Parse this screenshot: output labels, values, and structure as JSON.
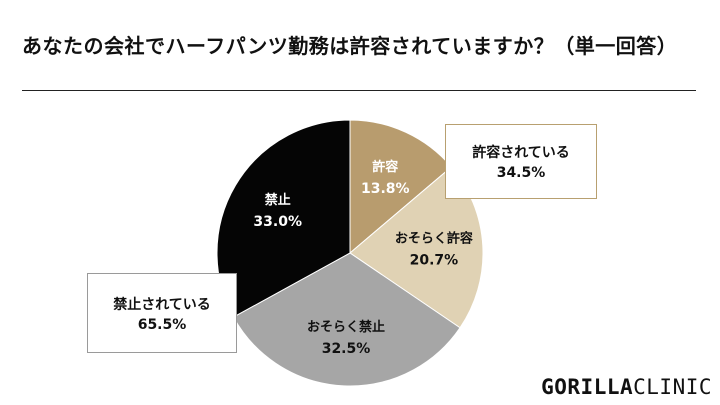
{
  "title": "あなたの会社でハーフパンツ勤務は許容されていますか？（単一回答）",
  "chart_data": {
    "type": "pie",
    "start_angle_deg": 0,
    "direction": "clockwise",
    "slices": [
      {
        "label": "許容",
        "value": 13.8,
        "value_text": "13.8%",
        "color": "#b89c6e",
        "text_color": "#ffffff"
      },
      {
        "label": "おそらく許容",
        "value": 20.7,
        "value_text": "20.7%",
        "color": "#e0d2b4",
        "text_color": "#111111"
      },
      {
        "label": "おそらく禁止",
        "value": 32.5,
        "value_text": "32.5%",
        "color": "#a6a6a6",
        "text_color": "#111111"
      },
      {
        "label": "禁止",
        "value": 33.0,
        "value_text": "33.0%",
        "color": "#050505",
        "text_color": "#ffffff"
      }
    ],
    "groups": [
      {
        "label": "許容されている",
        "value_text": "34.5%",
        "border_color": "#b8a070"
      },
      {
        "label": "禁止されている",
        "value_text": "65.5%",
        "border_color": "#9a9a9a"
      }
    ]
  },
  "logo": {
    "part1": "GORILLA",
    "part2": "CLINIC"
  }
}
